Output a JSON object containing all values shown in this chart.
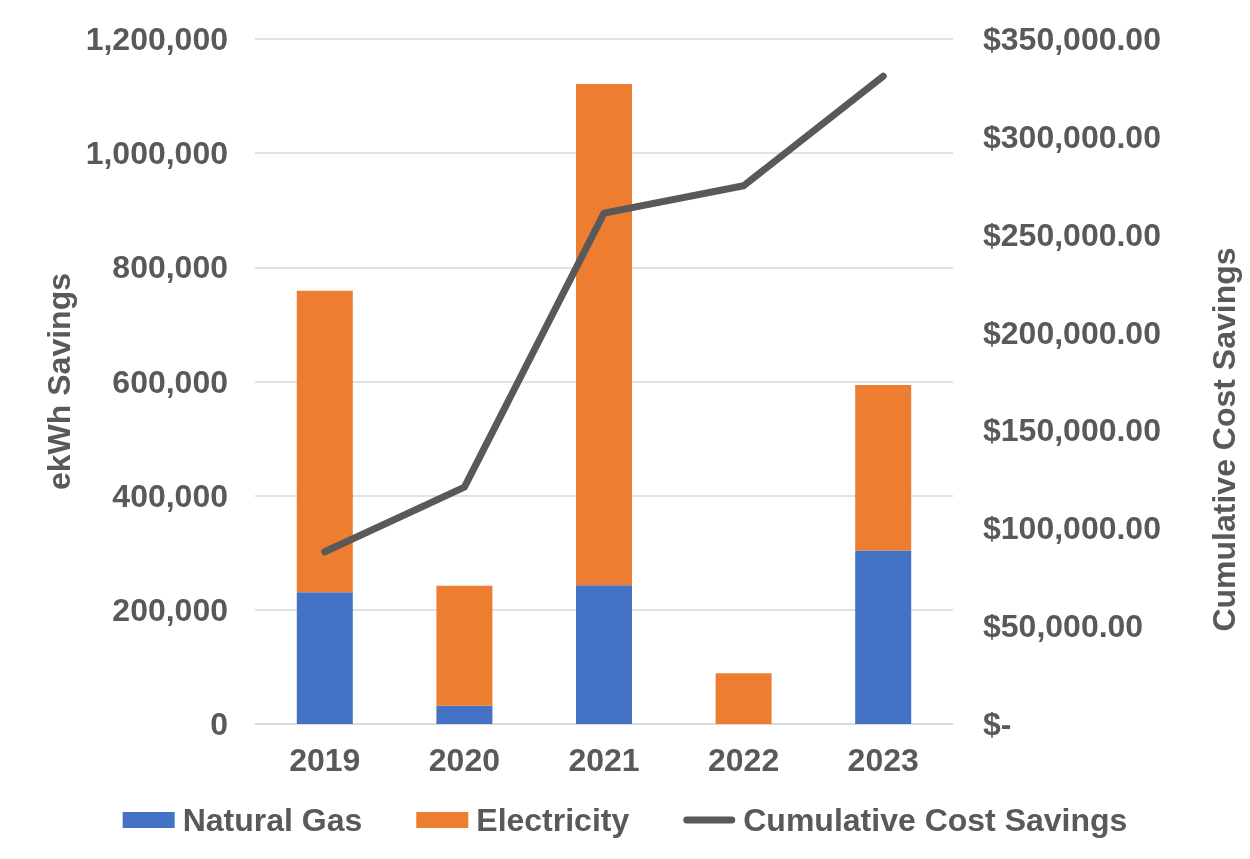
{
  "chart_data": {
    "type": "bar",
    "stacked": true,
    "categories": [
      "2019",
      "2020",
      "2021",
      "2022",
      "2023"
    ],
    "ylabel": "ekWh Savings",
    "y2label": "Cumulative Cost Savings",
    "ylim": [
      0,
      1200000
    ],
    "yticks": [
      0,
      {
        "value": 200000,
        "label": "200,000"
      },
      {
        "value": 400000,
        "label": "400,000"
      },
      {
        "value": 600000,
        "label": "600,000"
      },
      {
        "value": 800000,
        "label": "800,000"
      },
      {
        "value": 1000000,
        "label": "1,000,000"
      },
      {
        "value": 1200000,
        "label": "1,200,000"
      }
    ],
    "y2lim": [
      0,
      350000
    ],
    "y2ticks": [
      {
        "value": 0,
        "label": "$-"
      },
      {
        "value": 50000,
        "label": "$50,000.00"
      },
      {
        "value": 100000,
        "label": "$100,000.00"
      },
      {
        "value": 150000,
        "label": "$150,000.00"
      },
      {
        "value": 200000,
        "label": "$200,000.00"
      },
      {
        "value": 250000,
        "label": "$250,000.00"
      },
      {
        "value": 300000,
        "label": "$300,000.00"
      },
      {
        "value": 350000,
        "label": "$350,000.00"
      }
    ],
    "series": [
      {
        "name": "Natural Gas",
        "color": "#4472c4",
        "values": [
          231000,
          32000,
          243000,
          0,
          304000
        ]
      },
      {
        "name": "Electricity",
        "color": "#ed7d31",
        "values": [
          528000,
          210000,
          878000,
          89000,
          290000
        ]
      },
      {
        "name": "Cumulative Cost Savings",
        "type": "line",
        "axis": "y2",
        "color": "#595959",
        "values": [
          88000,
          121000,
          261000,
          275000,
          331000
        ]
      }
    ],
    "grid": "y",
    "legend": "bottom",
    "marker": "none",
    "line_style": "solid"
  }
}
